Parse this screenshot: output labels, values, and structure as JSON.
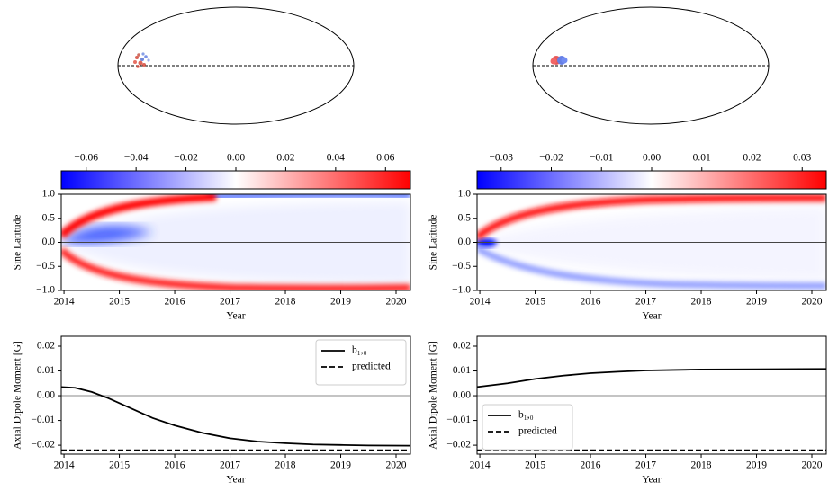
{
  "chart_data": [
    {
      "type": "heatmap",
      "xlabel": "Year",
      "ylabel": "Sine Latitude",
      "xlim": [
        2013.95,
        2020.26
      ],
      "xticks": [
        2014,
        2015,
        2016,
        2017,
        2018,
        2019,
        2020
      ],
      "ylim": [
        -1,
        1
      ],
      "yticks": [
        {
          "value": 1,
          "label": "1.0"
        },
        0.5,
        {
          "value": 0,
          "label": "0.0"
        },
        {
          "value": -0.5,
          "label": "−0.5"
        },
        {
          "value": -1,
          "label": "−1.0"
        }
      ],
      "colorbar": {
        "lim": [
          -0.07,
          0.07
        ],
        "colors": [
          "#0000ff",
          "#ffffff",
          "#ff0000"
        ],
        "ticks": [
          {
            "value": -0.06,
            "label": "−0.06"
          },
          {
            "value": -0.04,
            "label": "−0.04"
          },
          {
            "value": -0.02,
            "label": "−0.02"
          },
          {
            "value": 0,
            "label": "0.00"
          },
          0.02,
          0.04,
          0.06
        ]
      }
    },
    {
      "type": "line",
      "xlabel": "Year",
      "ylabel": "Axial Dipole Moment [G]",
      "xlim": [
        2013.95,
        2020.26
      ],
      "xticks": [
        2014,
        2015,
        2016,
        2017,
        2018,
        2019,
        2020
      ],
      "ylim": [
        -0.0236,
        0.024
      ],
      "yticks": [
        0.02,
        0.01,
        {
          "value": 0,
          "label": "0.00"
        },
        {
          "value": -0.01,
          "label": "−0.01"
        },
        {
          "value": -0.02,
          "label": "−0.02"
        }
      ],
      "legend": "upper right",
      "series": [
        {
          "name": "b₁,₀",
          "color": "#000000",
          "style": "solid",
          "x": [
            2013.95,
            2014.2,
            2014.5,
            2014.8,
            2015.0,
            2015.3,
            2015.6,
            2016.0,
            2016.5,
            2017.0,
            2017.5,
            2018.0,
            2018.5,
            2019.0,
            2019.5,
            2020.26
          ],
          "values": [
            0.0035,
            0.0032,
            0.0015,
            -0.001,
            -0.003,
            -0.006,
            -0.009,
            -0.012,
            -0.015,
            -0.0172,
            -0.0185,
            -0.0192,
            -0.0197,
            -0.0199,
            -0.0201,
            -0.0202
          ]
        },
        {
          "name": "predicted",
          "color": "#000000",
          "style": "dashed",
          "x": [
            2013.95,
            2020.26
          ],
          "values": [
            -0.022,
            -0.022
          ]
        }
      ]
    },
    {
      "type": "heatmap",
      "xlabel": "Year",
      "ylabel": "Sine Latitude",
      "xlim": [
        2013.95,
        2020.26
      ],
      "xticks": [
        2014,
        2015,
        2016,
        2017,
        2018,
        2019,
        2020
      ],
      "ylim": [
        -1,
        1
      ],
      "yticks": [
        {
          "value": 1,
          "label": "1.0"
        },
        0.5,
        {
          "value": 0,
          "label": "0.0"
        },
        {
          "value": -0.5,
          "label": "−0.5"
        },
        {
          "value": -1,
          "label": "−1.0"
        }
      ],
      "colorbar": {
        "lim": [
          -0.0348,
          0.0348
        ],
        "colors": [
          "#0000ff",
          "#ffffff",
          "#ff0000"
        ],
        "ticks": [
          {
            "value": -0.03,
            "label": "−0.03"
          },
          {
            "value": -0.02,
            "label": "−0.02"
          },
          {
            "value": -0.01,
            "label": "−0.01"
          },
          {
            "value": 0,
            "label": "0.00"
          },
          0.01,
          0.02,
          0.03
        ]
      }
    },
    {
      "type": "line",
      "xlabel": "Year",
      "ylabel": "Axial Dipole Moment [G]",
      "xlim": [
        2013.95,
        2020.26
      ],
      "xticks": [
        2014,
        2015,
        2016,
        2017,
        2018,
        2019,
        2020
      ],
      "ylim": [
        -0.0236,
        0.024
      ],
      "yticks": [
        0.02,
        0.01,
        {
          "value": 0,
          "label": "0.00"
        },
        {
          "value": -0.01,
          "label": "−0.01"
        },
        {
          "value": -0.02,
          "label": "−0.02"
        }
      ],
      "legend": "lower left",
      "series": [
        {
          "name": "b₁,₀",
          "color": "#000000",
          "style": "solid",
          "x": [
            2013.95,
            2014.5,
            2015.0,
            2015.5,
            2016.0,
            2016.5,
            2017.0,
            2017.5,
            2018.0,
            2019.0,
            2020.26
          ],
          "values": [
            0.0035,
            0.005,
            0.0068,
            0.0081,
            0.0091,
            0.0097,
            0.0102,
            0.0104,
            0.0106,
            0.0107,
            0.0108
          ]
        },
        {
          "name": "predicted",
          "color": "#000000",
          "style": "dashed",
          "x": [
            2013.95,
            2020.26
          ],
          "values": [
            -0.022,
            -0.022
          ]
        }
      ]
    }
  ]
}
